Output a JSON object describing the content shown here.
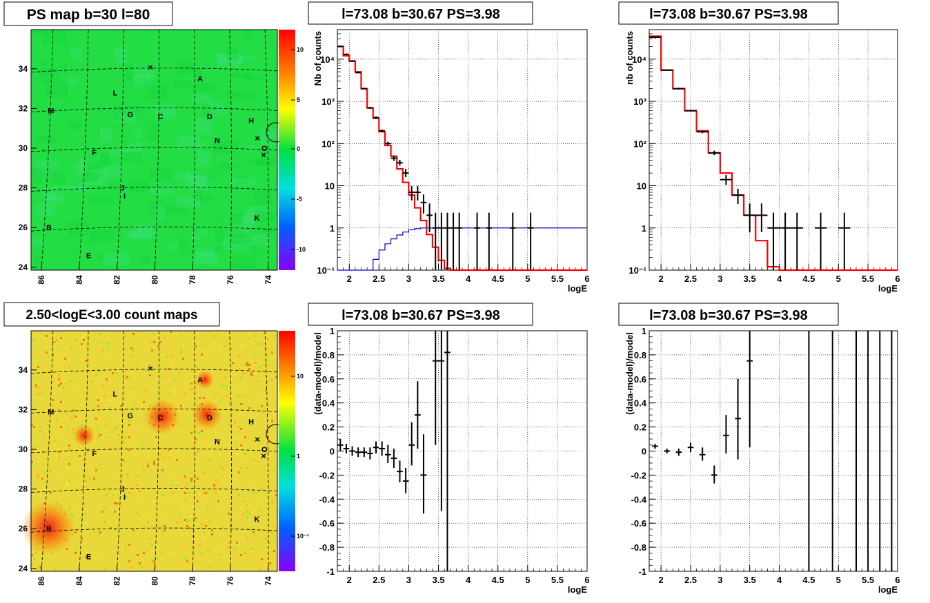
{
  "colors": {
    "red": "#ff0000",
    "blue": "#0000cc",
    "black": "#000000",
    "map_green": "#22dd44"
  },
  "panels": {
    "ps_map": {
      "title": "PS map b=30 l=80",
      "x_ticks": [
        "86",
        "84",
        "82",
        "80",
        "78",
        "76",
        "74"
      ],
      "y_ticks": [
        "34",
        "32",
        "30",
        "28",
        "26",
        "24"
      ],
      "colorbar_ticks": [
        "10",
        "5",
        "0",
        "-5",
        "-10"
      ],
      "sources": [
        {
          "label": "A",
          "l": 77.6,
          "b": 33.5
        },
        {
          "label": "L",
          "l": 82.1,
          "b": 32.8
        },
        {
          "label": "M",
          "l": 85.5,
          "b": 31.9
        },
        {
          "label": "G",
          "l": 81.3,
          "b": 31.7
        },
        {
          "label": "C",
          "l": 79.7,
          "b": 31.6
        },
        {
          "label": "D",
          "l": 77.1,
          "b": 31.6
        },
        {
          "label": "H",
          "l": 74.9,
          "b": 31.4
        },
        {
          "label": "N",
          "l": 76.7,
          "b": 30.4
        },
        {
          "label": "O",
          "l": 74.2,
          "b": 30.0
        },
        {
          "label": "F",
          "l": 83.2,
          "b": 29.8
        },
        {
          "label": "J",
          "l": 81.7,
          "b": 28.0
        },
        {
          "label": "I",
          "l": 81.6,
          "b": 27.6
        },
        {
          "label": "K",
          "l": 74.6,
          "b": 26.5
        },
        {
          "label": "B",
          "l": 85.6,
          "b": 26.0
        },
        {
          "label": "E",
          "l": 83.5,
          "b": 24.6
        }
      ]
    },
    "count_map": {
      "title": "2.50<logE<3.00 count maps",
      "colorbar_ticks": [
        "10",
        "1",
        "10⁻¹"
      ]
    }
  },
  "chart_data": [
    {
      "type": "line",
      "title": "l=73.08 b=30.67 PS=3.98",
      "xlabel": "logE",
      "ylabel": "Nb of counts",
      "xlim": [
        1.8,
        6.0
      ],
      "ylim": [
        0.1,
        50000
      ],
      "y_scale": "log",
      "grid": true,
      "x_ticks": [
        "2",
        "2.5",
        "3",
        "3.5",
        "4",
        "4.5",
        "5",
        "5.5",
        "6"
      ],
      "y_ticks": [
        "10⁴",
        "10³",
        "10²",
        "10",
        "1",
        "10⁻¹"
      ],
      "bin_edges": [
        1.8,
        1.9,
        2.0,
        2.1,
        2.2,
        2.3,
        2.4,
        2.5,
        2.6,
        2.7,
        2.8,
        2.9,
        3.0,
        3.1,
        3.2,
        3.3,
        3.4,
        3.5,
        3.6,
        3.7,
        3.8,
        3.9,
        4.0,
        4.1,
        4.2,
        4.3,
        4.4,
        4.5,
        4.6,
        4.7,
        4.8,
        4.9,
        5.0,
        5.1,
        5.2,
        5.3,
        5.4,
        5.5,
        5.6,
        5.7,
        5.8,
        5.9,
        6.0
      ],
      "model": [
        20000,
        12000,
        9000,
        5000,
        2000,
        700,
        400,
        190,
        90,
        50,
        25,
        12,
        6,
        3,
        1.5,
        0.7,
        0.35,
        0.17,
        0.11,
        0.1,
        0.1,
        0.1,
        0.1,
        0.1,
        0.1,
        0.1,
        0.1,
        0.1,
        0.1,
        0.1,
        0.1,
        0.1,
        0.1,
        0.1,
        0.1,
        0.1,
        0.1,
        0.1,
        0.1,
        0.1,
        0.1,
        0.1
      ],
      "efficiency": [
        0.1,
        0.1,
        0.1,
        0.1,
        0.1,
        0.1,
        0.18,
        0.3,
        0.42,
        0.55,
        0.68,
        0.8,
        0.9,
        0.96,
        1.0,
        1.0,
        1.0,
        1.0,
        1.0,
        1.0,
        1.0,
        1.0,
        1.0,
        1.0,
        1.0,
        1.0,
        1.0,
        1.0,
        1.0,
        1.0,
        1.0,
        1.0,
        1.0,
        1.0,
        1.0,
        1.0,
        1.0,
        1.0,
        1.0,
        1.0,
        1.0,
        1.0
      ],
      "data": [
        {
          "x": 1.85,
          "y": 20000,
          "lo": 19000,
          "hi": 21000
        },
        {
          "x": 1.95,
          "y": 13000,
          "lo": 12500,
          "hi": 13600
        },
        {
          "x": 2.05,
          "y": 9000,
          "lo": 8600,
          "hi": 9400
        },
        {
          "x": 2.15,
          "y": 4800,
          "lo": 4600,
          "hi": 5000
        },
        {
          "x": 2.25,
          "y": 2000,
          "lo": 1900,
          "hi": 2100
        },
        {
          "x": 2.35,
          "y": 700,
          "lo": 660,
          "hi": 740
        },
        {
          "x": 2.45,
          "y": 410,
          "lo": 380,
          "hi": 440
        },
        {
          "x": 2.55,
          "y": 200,
          "lo": 185,
          "hi": 215
        },
        {
          "x": 2.65,
          "y": 100,
          "lo": 90,
          "hi": 110
        },
        {
          "x": 2.75,
          "y": 45,
          "lo": 39,
          "hi": 52
        },
        {
          "x": 2.85,
          "y": 35,
          "lo": 30,
          "hi": 41
        },
        {
          "x": 2.95,
          "y": 20,
          "lo": 16,
          "hi": 25
        },
        {
          "x": 3.05,
          "y": 7,
          "lo": 4.5,
          "hi": 9.8
        },
        {
          "x": 3.15,
          "y": 7,
          "lo": 4.5,
          "hi": 9.8
        },
        {
          "x": 3.25,
          "y": 4,
          "lo": 2.2,
          "hi": 6.2
        },
        {
          "x": 3.35,
          "y": 2,
          "lo": 0.8,
          "hi": 3.8
        },
        {
          "x": 3.45,
          "y": 1,
          "lo": 0.1,
          "hi": 2.3
        },
        {
          "x": 3.55,
          "y": 1,
          "lo": 0.1,
          "hi": 2.3
        },
        {
          "x": 3.65,
          "y": 1,
          "lo": 0.1,
          "hi": 2.3
        },
        {
          "x": 3.75,
          "y": 1,
          "lo": 0.1,
          "hi": 2.3
        },
        {
          "x": 3.85,
          "y": 1,
          "lo": 0.1,
          "hi": 2.3
        },
        {
          "x": 4.15,
          "y": 1,
          "lo": 0.1,
          "hi": 2.3
        },
        {
          "x": 4.35,
          "y": 1,
          "lo": 0.1,
          "hi": 2.3
        },
        {
          "x": 4.75,
          "y": 1,
          "lo": 0.1,
          "hi": 2.3
        },
        {
          "x": 5.05,
          "y": 1,
          "lo": 0.1,
          "hi": 2.3
        }
      ]
    },
    {
      "type": "line",
      "title": "l=73.08 b=30.67 PS=3.98",
      "xlabel": "logE",
      "ylabel": "nb of counts",
      "xlim": [
        1.8,
        6.0
      ],
      "ylim": [
        0.1,
        50000
      ],
      "y_scale": "log",
      "grid": true,
      "x_ticks": [
        "2",
        "2.5",
        "3",
        "3.5",
        "4",
        "4.5",
        "5",
        "5.5",
        "6"
      ],
      "y_ticks": [
        "10⁴",
        "10³",
        "10²",
        "10",
        "1",
        "10⁻¹"
      ],
      "bin_edges": [
        1.8,
        2.0,
        2.2,
        2.4,
        2.6,
        2.8,
        3.0,
        3.2,
        3.4,
        3.6,
        3.8,
        4.0,
        4.2,
        4.4,
        4.6,
        4.8,
        5.0,
        5.2,
        5.4,
        5.6,
        5.8,
        6.0
      ],
      "model": [
        35000,
        5500,
        2000,
        600,
        200,
        60,
        20,
        6,
        2,
        0.5,
        0.12,
        0.1,
        0.1,
        0.1,
        0.1,
        0.1,
        0.1,
        0.1,
        0.1,
        0.1,
        0.1
      ],
      "data": [
        {
          "x": 1.9,
          "y": 33000,
          "lo": 31000,
          "hi": 35000
        },
        {
          "x": 2.1,
          "y": 5500,
          "lo": 5300,
          "hi": 5700
        },
        {
          "x": 2.3,
          "y": 2000,
          "lo": 1900,
          "hi": 2100
        },
        {
          "x": 2.5,
          "y": 600,
          "lo": 570,
          "hi": 630
        },
        {
          "x": 2.7,
          "y": 190,
          "lo": 175,
          "hi": 205
        },
        {
          "x": 2.9,
          "y": 60,
          "lo": 53,
          "hi": 68
        },
        {
          "x": 3.1,
          "y": 14,
          "lo": 10.5,
          "hi": 18
        },
        {
          "x": 3.3,
          "y": 6,
          "lo": 3.7,
          "hi": 8.5
        },
        {
          "x": 3.5,
          "y": 2,
          "lo": 0.8,
          "hi": 3.8
        },
        {
          "x": 3.7,
          "y": 2,
          "lo": 0.8,
          "hi": 3.8
        },
        {
          "x": 3.9,
          "y": 1,
          "lo": 0.1,
          "hi": 2.3
        },
        {
          "x": 4.1,
          "y": 1,
          "lo": 0.1,
          "hi": 2.3
        },
        {
          "x": 4.3,
          "y": 1,
          "lo": 0.1,
          "hi": 2.3
        },
        {
          "x": 4.7,
          "y": 1,
          "lo": 0.1,
          "hi": 2.3
        },
        {
          "x": 5.1,
          "y": 1,
          "lo": 0.1,
          "hi": 2.3
        }
      ]
    },
    {
      "type": "scatter",
      "title": "l=73.08 b=30.67 PS=3.98",
      "xlabel": "logE",
      "ylabel": "(data-model)/model",
      "xlim": [
        1.8,
        6.0
      ],
      "ylim": [
        -1,
        1
      ],
      "grid": true,
      "x_ticks": [
        "2",
        "2.5",
        "3",
        "3.5",
        "4",
        "4.5",
        "5",
        "5.5",
        "6"
      ],
      "y_ticks": [
        "1",
        "0.8",
        "0.6",
        "0.4",
        "0.2",
        "0",
        "-0.2",
        "-0.4",
        "-0.6",
        "-0.8",
        "-1"
      ],
      "data": [
        {
          "x": 1.85,
          "y": 0.05,
          "lo": 0.0,
          "hi": 0.1
        },
        {
          "x": 1.95,
          "y": 0.02,
          "lo": -0.02,
          "hi": 0.06
        },
        {
          "x": 2.05,
          "y": 0.0,
          "lo": -0.04,
          "hi": 0.04
        },
        {
          "x": 2.15,
          "y": -0.01,
          "lo": -0.05,
          "hi": 0.03
        },
        {
          "x": 2.25,
          "y": -0.01,
          "lo": -0.05,
          "hi": 0.03
        },
        {
          "x": 2.35,
          "y": -0.02,
          "lo": -0.07,
          "hi": 0.03
        },
        {
          "x": 2.45,
          "y": 0.03,
          "lo": -0.02,
          "hi": 0.08
        },
        {
          "x": 2.55,
          "y": 0.02,
          "lo": -0.04,
          "hi": 0.08
        },
        {
          "x": 2.65,
          "y": -0.03,
          "lo": -0.1,
          "hi": 0.05
        },
        {
          "x": 2.75,
          "y": -0.06,
          "lo": -0.14,
          "hi": 0.02
        },
        {
          "x": 2.85,
          "y": -0.17,
          "lo": -0.26,
          "hi": -0.08
        },
        {
          "x": 2.95,
          "y": -0.25,
          "lo": -0.35,
          "hi": -0.14
        },
        {
          "x": 3.05,
          "y": 0.05,
          "lo": -0.12,
          "hi": 0.24
        },
        {
          "x": 3.15,
          "y": 0.3,
          "lo": 0.02,
          "hi": 0.58
        },
        {
          "x": 3.25,
          "y": -0.2,
          "lo": -0.52,
          "hi": 0.14
        },
        {
          "x": 3.45,
          "y": 0.75,
          "lo": 0.05,
          "hi": 1.0
        },
        {
          "x": 3.55,
          "y": 0.75,
          "lo": -0.5,
          "hi": 1.0
        },
        {
          "x": 3.65,
          "y": 0.82,
          "lo": -1.0,
          "hi": 1.0
        }
      ]
    },
    {
      "type": "scatter",
      "title": "l=73.08 b=30.67 PS=3.98",
      "xlabel": "logE",
      "ylabel": "(data-model)/model",
      "xlim": [
        1.8,
        6.0
      ],
      "ylim": [
        -1,
        1
      ],
      "grid": true,
      "x_ticks": [
        "2",
        "2.5",
        "3",
        "3.5",
        "4",
        "4.5",
        "5",
        "5.5",
        "6"
      ],
      "y_ticks": [
        "1",
        "0.8",
        "0.6",
        "0.4",
        "0.2",
        "0",
        "-0.2",
        "-0.4",
        "-0.6",
        "-0.8",
        "-1"
      ],
      "data": [
        {
          "x": 1.9,
          "y": 0.04,
          "lo": 0.02,
          "hi": 0.06
        },
        {
          "x": 2.1,
          "y": 0.0,
          "lo": -0.02,
          "hi": 0.02
        },
        {
          "x": 2.3,
          "y": -0.01,
          "lo": -0.04,
          "hi": 0.02
        },
        {
          "x": 2.5,
          "y": 0.03,
          "lo": -0.01,
          "hi": 0.07
        },
        {
          "x": 2.7,
          "y": -0.03,
          "lo": -0.08,
          "hi": 0.03
        },
        {
          "x": 2.9,
          "y": -0.2,
          "lo": -0.27,
          "hi": -0.12
        },
        {
          "x": 3.1,
          "y": 0.13,
          "lo": -0.02,
          "hi": 0.3
        },
        {
          "x": 3.3,
          "y": 0.27,
          "lo": -0.07,
          "hi": 0.6
        },
        {
          "x": 3.5,
          "y": 0.75,
          "lo": 0.03,
          "hi": 1.0
        },
        {
          "x": 4.5,
          "y": 1.0,
          "lo": -1.0,
          "hi": 1.0
        },
        {
          "x": 4.9,
          "y": 1.0,
          "lo": -1.0,
          "hi": 1.0
        },
        {
          "x": 5.3,
          "y": 1.0,
          "lo": -1.0,
          "hi": 1.0
        },
        {
          "x": 5.5,
          "y": 1.0,
          "lo": -1.0,
          "hi": 1.0
        },
        {
          "x": 5.7,
          "y": 1.0,
          "lo": -1.0,
          "hi": 1.0
        },
        {
          "x": 5.9,
          "y": 1.0,
          "lo": -1.0,
          "hi": 1.0
        }
      ]
    }
  ]
}
